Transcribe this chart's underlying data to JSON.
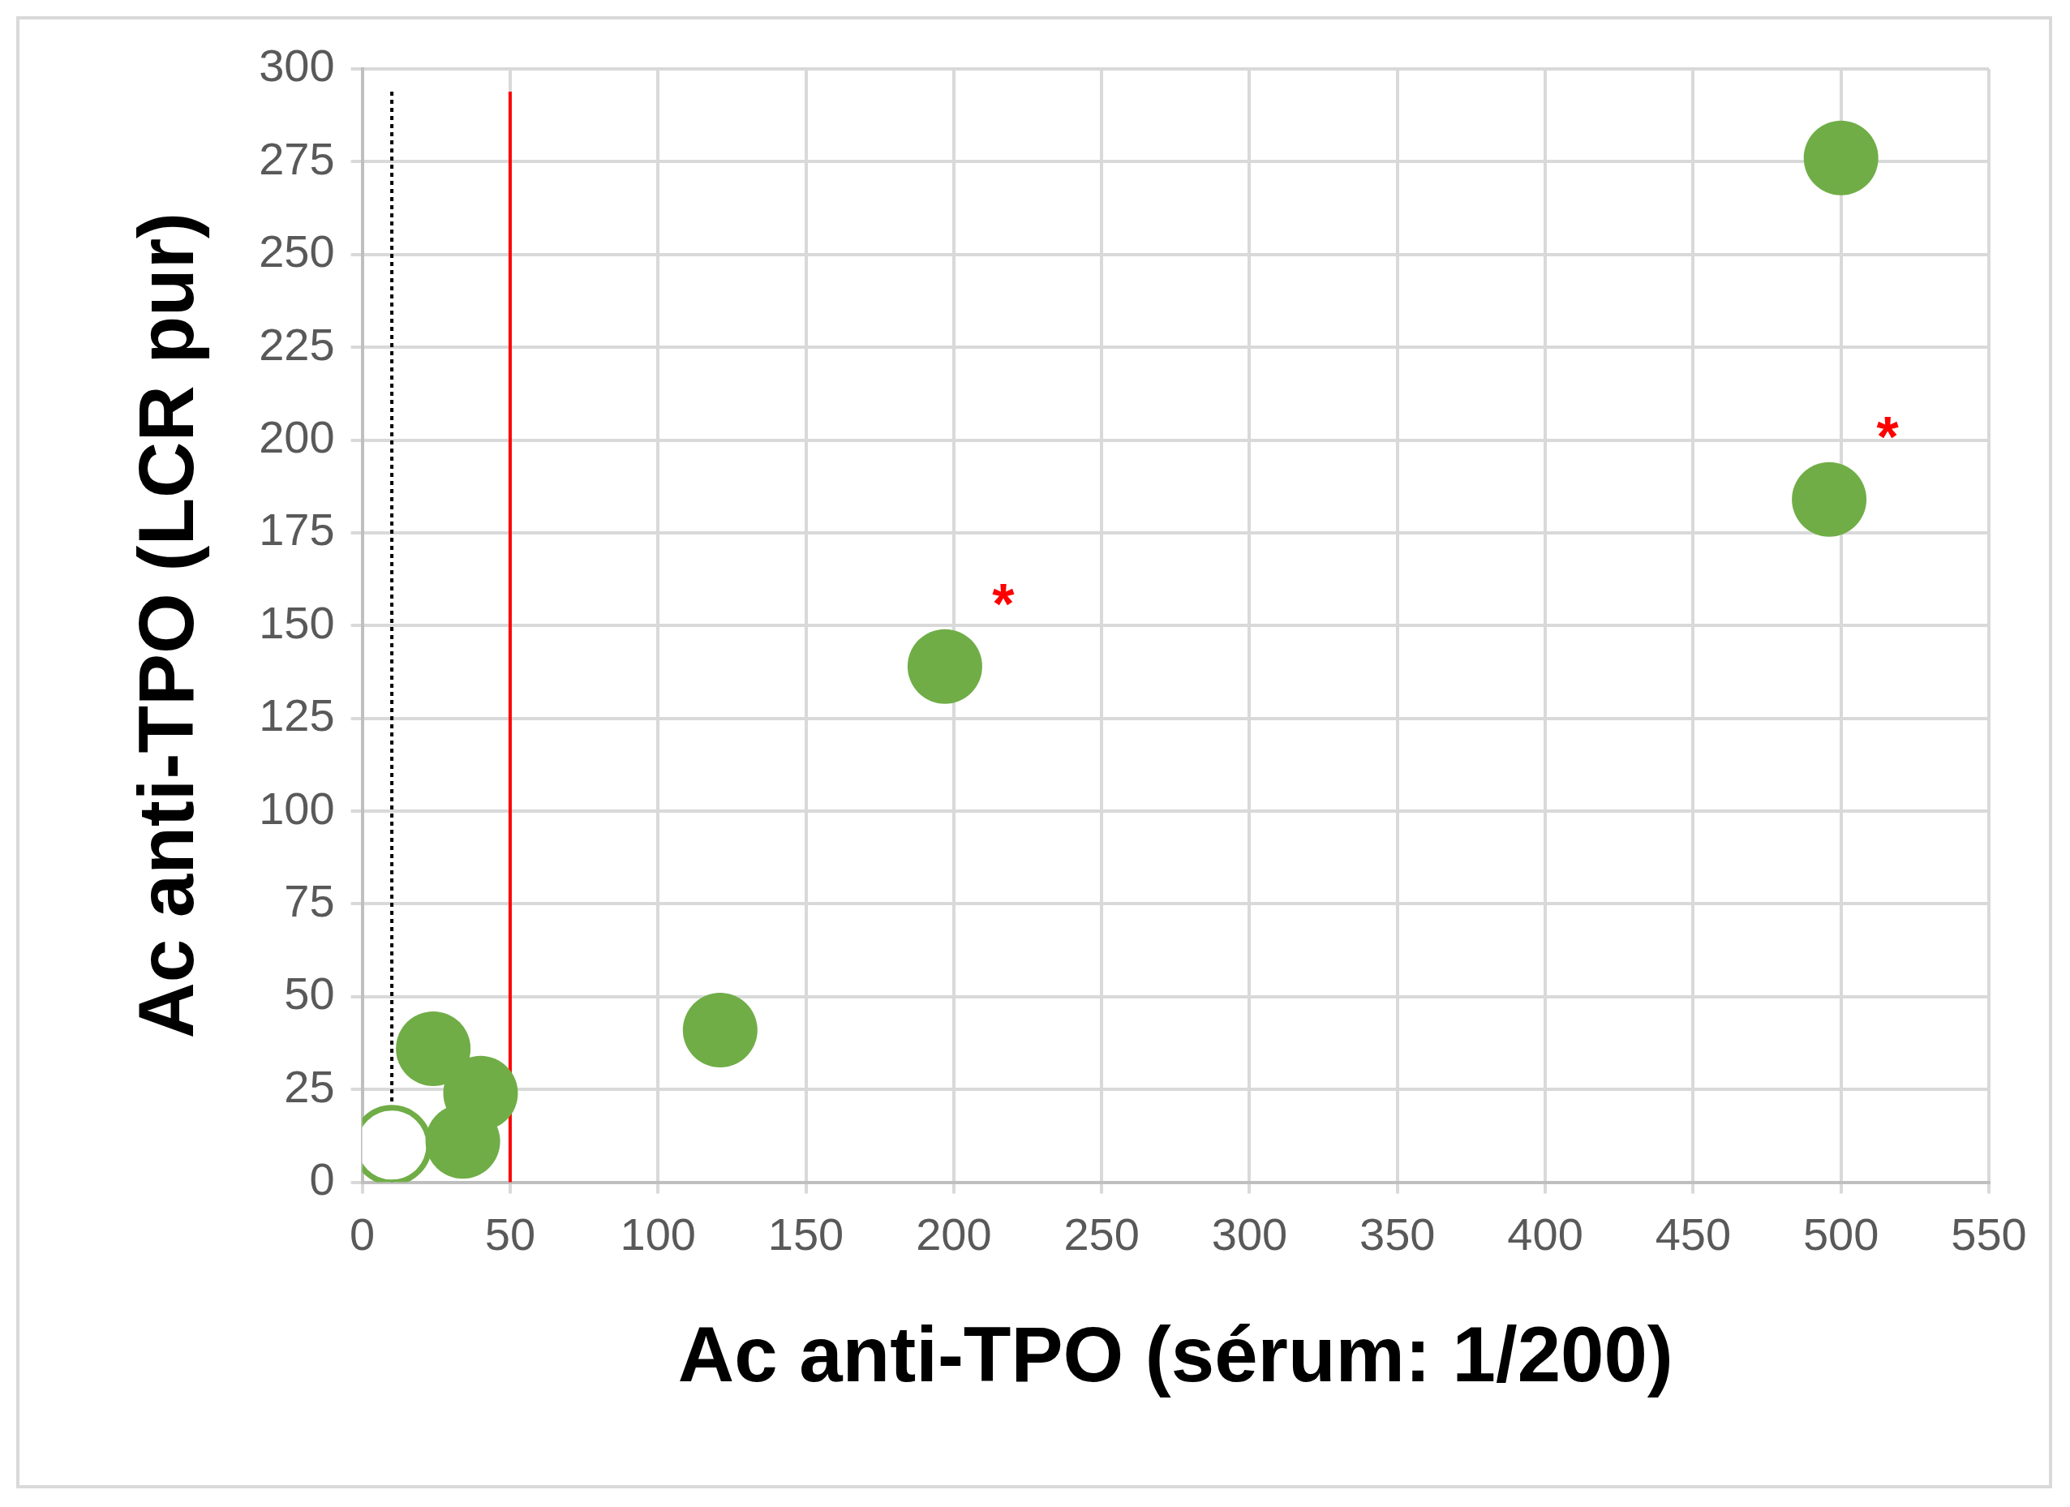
{
  "chart_data": {
    "type": "scatter",
    "xlabel": "Ac anti-TPO (sérum: 1/200)",
    "ylabel": "Ac anti-TPO (LCR pur)",
    "series": [
      {
        "color": "#70ad47",
        "x": [
          24,
          40,
          34,
          121,
          197,
          496,
          500
        ],
        "values": [
          36,
          24,
          11,
          41,
          139,
          184,
          276
        ]
      },
      {
        "color": "#70ad47",
        "x": [
          10
        ],
        "values": [
          10
        ]
      }
    ],
    "marker": "circle",
    "xlim": [
      0,
      550
    ],
    "xticks": [
      0,
      50,
      100,
      150,
      200,
      250,
      300,
      350,
      400,
      450,
      500,
      550
    ],
    "ylim": [
      0,
      300
    ],
    "yticks": [
      0,
      25,
      50,
      75,
      100,
      125,
      150,
      175,
      200,
      225,
      250,
      275,
      300
    ],
    "grid": true,
    "ref_lines": [
      {
        "axis": "x",
        "value": 10,
        "color": "#000000",
        "line_style": "dotted"
      },
      {
        "axis": "x",
        "value": 50,
        "color": "#ff0000",
        "line_style": "solid"
      }
    ],
    "annotations": [
      {
        "text": "*",
        "x": 197,
        "y": 139
      },
      {
        "text": "*",
        "x": 496,
        "y": 184
      }
    ]
  }
}
